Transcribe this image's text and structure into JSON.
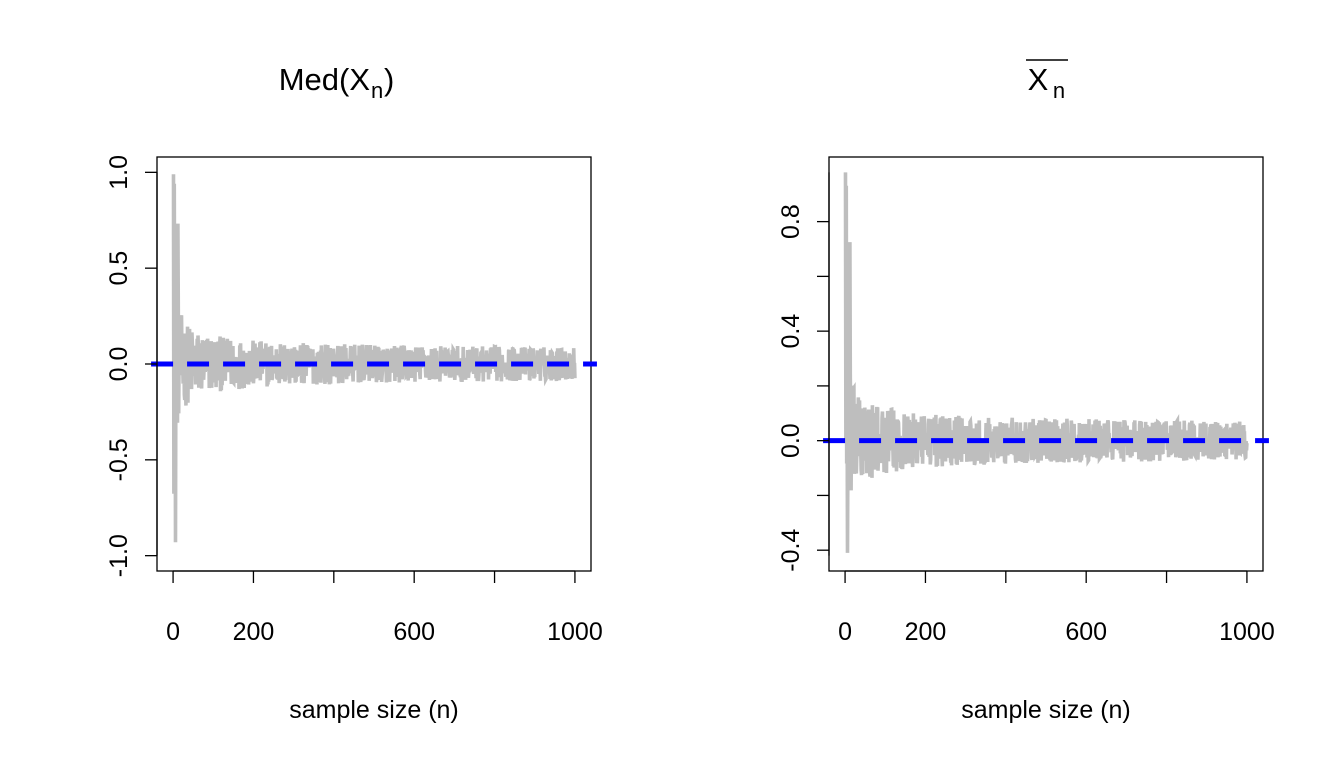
{
  "chart_data": [
    {
      "type": "line",
      "title": "Med(X",
      "title_subscript": "n",
      "title_suffix": ")",
      "xlabel": "sample size (n)",
      "ylabel": "",
      "xlim": [
        0,
        1000
      ],
      "ylim": [
        -1.0,
        1.0
      ],
      "xtick_labels": [
        "0",
        "200",
        "600",
        "1000"
      ],
      "xtick_values": [
        0,
        200,
        600,
        1000
      ],
      "xtick_minor_values": [
        400,
        800
      ],
      "ytick_labels": [
        "-1.0",
        "-0.5",
        "0.0",
        "0.5",
        "1.0"
      ],
      "ytick_values": [
        -1.0,
        -0.5,
        0.0,
        0.5,
        1.0
      ],
      "grid": false,
      "series": [
        {
          "style": "solid",
          "color": "#bebebe",
          "envelope": {
            "start": 0.99,
            "min": -0.93,
            "decay_amplitude": 0.32,
            "tail_amplitude": 0.06,
            "n": 1000
          }
        },
        {
          "style": "dashed",
          "color": "#0000ff",
          "x": [
            0,
            1000
          ],
          "y": [
            0,
            0
          ]
        }
      ]
    },
    {
      "type": "line",
      "title": "X",
      "title_subscript": "n",
      "title_overline": true,
      "xlabel": "sample size (n)",
      "ylabel": "",
      "xlim": [
        0,
        1000
      ],
      "ylim": [
        -0.42,
        0.98
      ],
      "xtick_labels": [
        "0",
        "200",
        "600",
        "1000"
      ],
      "xtick_values": [
        0,
        200,
        600,
        1000
      ],
      "xtick_minor_values": [
        400,
        800
      ],
      "ytick_labels": [
        "-0.4",
        "0.0",
        "0.4",
        "0.8"
      ],
      "ytick_values": [
        -0.4,
        0.0,
        0.4,
        0.8
      ],
      "ytick_minor_values": [
        -0.2,
        0.2,
        0.6
      ],
      "grid": false,
      "series": [
        {
          "style": "solid",
          "color": "#bebebe",
          "envelope": {
            "start": 0.98,
            "min": -0.41,
            "decay_amplitude": 0.25,
            "tail_amplitude": 0.05,
            "n": 1000
          }
        },
        {
          "style": "dashed",
          "color": "#0000ff",
          "x": [
            0,
            1000
          ],
          "y": [
            0,
            0
          ]
        }
      ]
    }
  ]
}
